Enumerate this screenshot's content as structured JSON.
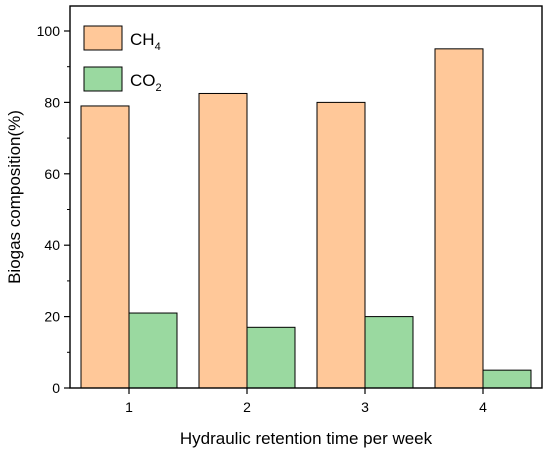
{
  "chart_data": {
    "type": "bar",
    "categories": [
      "1",
      "2",
      "3",
      "4"
    ],
    "series": [
      {
        "name": "CH4",
        "label_main": "CH",
        "label_sub": "4",
        "color": "#FFC899",
        "values": [
          79,
          82.5,
          80,
          95
        ]
      },
      {
        "name": "CO2",
        "label_main": "CO",
        "label_sub": "2",
        "color": "#9AD9A0",
        "values": [
          21,
          17,
          20,
          5
        ]
      }
    ],
    "xlabel": "Hydraulic retention time per week",
    "ylabel": "Biogas composition(%)",
    "ylim": [
      0,
      107
    ],
    "yticks": [
      0,
      20,
      40,
      60,
      80,
      100
    ],
    "grid": false,
    "legend": "top-left"
  }
}
